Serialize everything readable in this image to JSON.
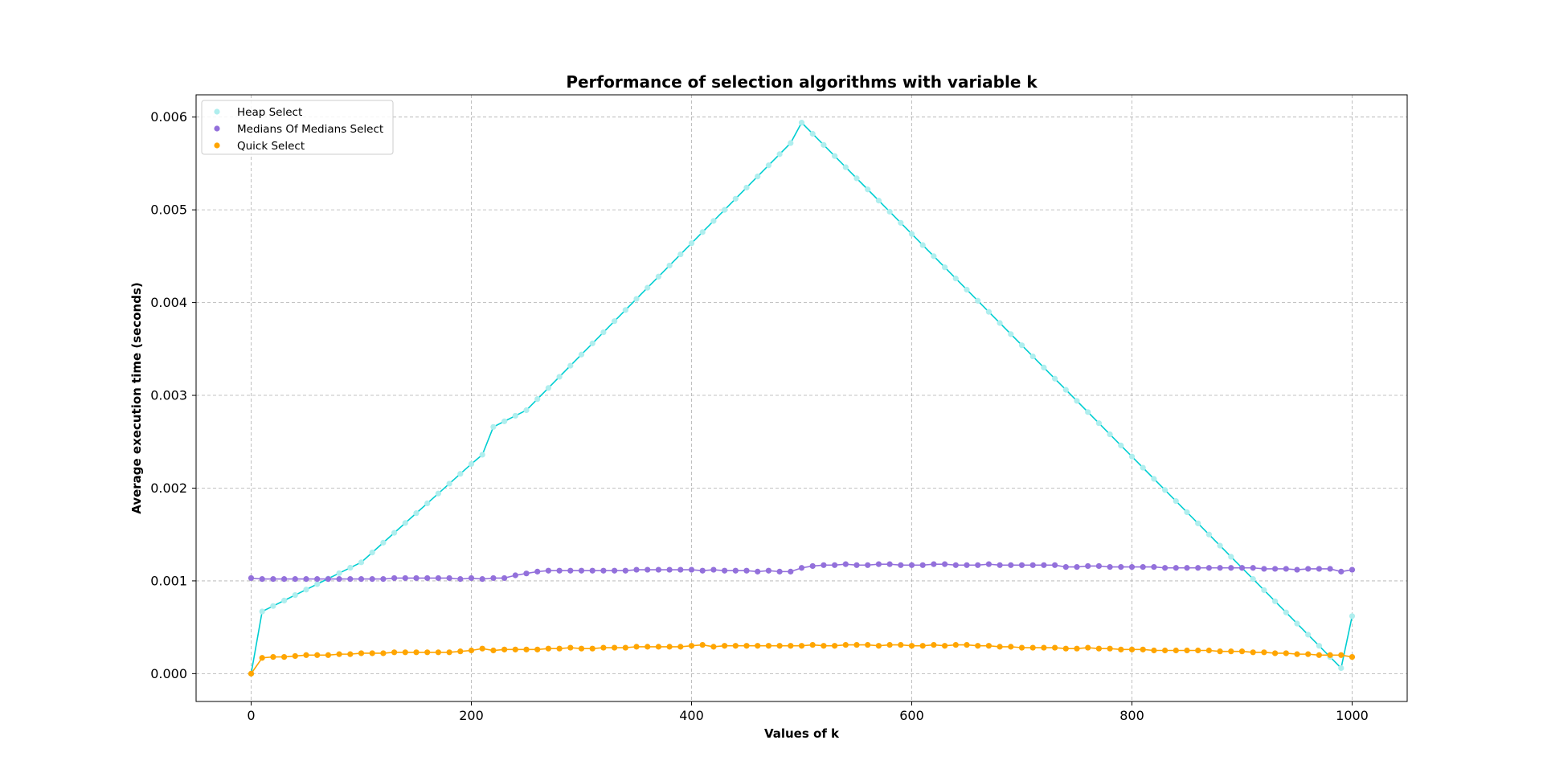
{
  "chart_data": {
    "type": "line",
    "title": "Performance of selection algorithms with variable k",
    "xlabel": "Values of k",
    "ylabel": "Average execution time (seconds)",
    "xlim": [
      -50,
      1050
    ],
    "ylim": [
      -0.0003,
      0.00624
    ],
    "xticks": [
      0,
      200,
      400,
      600,
      800,
      1000
    ],
    "xtick_labels": [
      "0",
      "200",
      "400",
      "600",
      "800",
      "1000"
    ],
    "yticks": [
      0.0,
      0.001,
      0.002,
      0.003,
      0.004,
      0.005,
      0.006
    ],
    "ytick_labels": [
      "0.000",
      "0.001",
      "0.002",
      "0.003",
      "0.004",
      "0.005",
      "0.006"
    ],
    "grid": true,
    "legend_position": "top-left",
    "x": [
      0,
      10,
      20,
      30,
      40,
      50,
      60,
      70,
      80,
      90,
      100,
      110,
      120,
      130,
      140,
      150,
      160,
      170,
      180,
      190,
      200,
      210,
      220,
      230,
      240,
      250,
      260,
      270,
      280,
      290,
      300,
      310,
      320,
      330,
      340,
      350,
      360,
      370,
      380,
      390,
      400,
      410,
      420,
      430,
      440,
      450,
      460,
      470,
      480,
      490,
      500,
      510,
      520,
      530,
      540,
      550,
      560,
      570,
      580,
      590,
      600,
      610,
      620,
      630,
      640,
      650,
      660,
      670,
      680,
      690,
      700,
      710,
      720,
      730,
      740,
      750,
      760,
      770,
      780,
      790,
      800,
      810,
      820,
      830,
      840,
      850,
      860,
      870,
      880,
      890,
      900,
      910,
      920,
      930,
      940,
      950,
      960,
      970,
      980,
      990,
      1000
    ],
    "series": [
      {
        "name": "Heap Select",
        "color": "#00CED1",
        "marker_color": "#AFEEEE",
        "values": [
          0.0,
          0.00067,
          0.000729,
          0.000788,
          0.000847,
          0.000906,
          0.000965,
          0.001024,
          0.001083,
          0.001142,
          0.0012,
          0.001306,
          0.001412,
          0.001518,
          0.001624,
          0.00173,
          0.001836,
          0.001942,
          0.002048,
          0.002154,
          0.00226,
          0.00236,
          0.00266,
          0.00272,
          0.00278,
          0.00284,
          0.00296,
          0.00308,
          0.0032,
          0.00332,
          0.00344,
          0.00356,
          0.00368,
          0.0038,
          0.00392,
          0.00404,
          0.00416,
          0.00428,
          0.0044,
          0.00452,
          0.00464,
          0.00476,
          0.00488,
          0.005,
          0.00512,
          0.00524,
          0.00536,
          0.00548,
          0.0056,
          0.00572,
          0.00594,
          0.00582,
          0.0057,
          0.00558,
          0.00546,
          0.00534,
          0.00522,
          0.0051,
          0.00498,
          0.00486,
          0.00474,
          0.00462,
          0.0045,
          0.00438,
          0.00426,
          0.00414,
          0.00402,
          0.0039,
          0.00378,
          0.00366,
          0.00354,
          0.00342,
          0.0033,
          0.00318,
          0.00306,
          0.00294,
          0.00282,
          0.0027,
          0.00258,
          0.00246,
          0.00234,
          0.00222,
          0.0021,
          0.00198,
          0.00186,
          0.00174,
          0.00162,
          0.0015,
          0.00138,
          0.00126,
          0.00114,
          0.00102,
          0.0009,
          0.00078,
          0.00066,
          0.00054,
          0.00042,
          0.0003,
          0.00018,
          6e-05,
          0.00062
        ]
      },
      {
        "name": "Medians Of Medians Select",
        "color": "#9370DB",
        "marker_color": "#9370DB",
        "values": [
          0.00103,
          0.00102,
          0.00102,
          0.00102,
          0.00102,
          0.00102,
          0.00102,
          0.00102,
          0.00102,
          0.00102,
          0.00102,
          0.00102,
          0.00102,
          0.00103,
          0.00103,
          0.00103,
          0.00103,
          0.00103,
          0.00103,
          0.00102,
          0.00103,
          0.00102,
          0.00103,
          0.00103,
          0.00106,
          0.00108,
          0.0011,
          0.00111,
          0.00111,
          0.00111,
          0.00111,
          0.00111,
          0.00111,
          0.00111,
          0.00111,
          0.00112,
          0.00112,
          0.00112,
          0.00112,
          0.00112,
          0.00112,
          0.00111,
          0.00112,
          0.00111,
          0.00111,
          0.00111,
          0.0011,
          0.00111,
          0.0011,
          0.0011,
          0.00114,
          0.00116,
          0.00117,
          0.00117,
          0.00118,
          0.00117,
          0.00117,
          0.00118,
          0.00118,
          0.00117,
          0.00117,
          0.00117,
          0.00118,
          0.00118,
          0.00117,
          0.00117,
          0.00117,
          0.00118,
          0.00117,
          0.00117,
          0.00117,
          0.00117,
          0.00117,
          0.00117,
          0.00115,
          0.00115,
          0.00116,
          0.00116,
          0.00115,
          0.00115,
          0.00115,
          0.00115,
          0.00115,
          0.00114,
          0.00114,
          0.00114,
          0.00114,
          0.00114,
          0.00114,
          0.00114,
          0.00114,
          0.00114,
          0.00113,
          0.00113,
          0.00113,
          0.00112,
          0.00113,
          0.00113,
          0.00113,
          0.0011,
          0.00112
        ]
      },
      {
        "name": "Quick Select",
        "color": "#FFA500",
        "marker_color": "#FFA500",
        "values": [
          0.0,
          0.00017,
          0.00018,
          0.00018,
          0.00019,
          0.0002,
          0.0002,
          0.0002,
          0.00021,
          0.00021,
          0.00022,
          0.00022,
          0.00022,
          0.00023,
          0.00023,
          0.00023,
          0.00023,
          0.00023,
          0.00023,
          0.00024,
          0.00025,
          0.00027,
          0.00025,
          0.00026,
          0.00026,
          0.00026,
          0.00026,
          0.00027,
          0.00027,
          0.00028,
          0.00027,
          0.00027,
          0.00028,
          0.00028,
          0.00028,
          0.00029,
          0.00029,
          0.00029,
          0.00029,
          0.00029,
          0.0003,
          0.00031,
          0.00029,
          0.0003,
          0.0003,
          0.0003,
          0.0003,
          0.0003,
          0.0003,
          0.0003,
          0.0003,
          0.00031,
          0.0003,
          0.0003,
          0.00031,
          0.00031,
          0.00031,
          0.0003,
          0.00031,
          0.00031,
          0.0003,
          0.0003,
          0.00031,
          0.0003,
          0.00031,
          0.00031,
          0.0003,
          0.0003,
          0.00029,
          0.00029,
          0.00028,
          0.00028,
          0.00028,
          0.00028,
          0.00027,
          0.00027,
          0.00028,
          0.00027,
          0.00027,
          0.00026,
          0.00026,
          0.00026,
          0.00025,
          0.00025,
          0.00025,
          0.00025,
          0.00025,
          0.00025,
          0.00024,
          0.00024,
          0.00024,
          0.00023,
          0.00023,
          0.00022,
          0.00022,
          0.00021,
          0.00021,
          0.0002,
          0.0002,
          0.0002,
          0.00018
        ]
      }
    ]
  }
}
